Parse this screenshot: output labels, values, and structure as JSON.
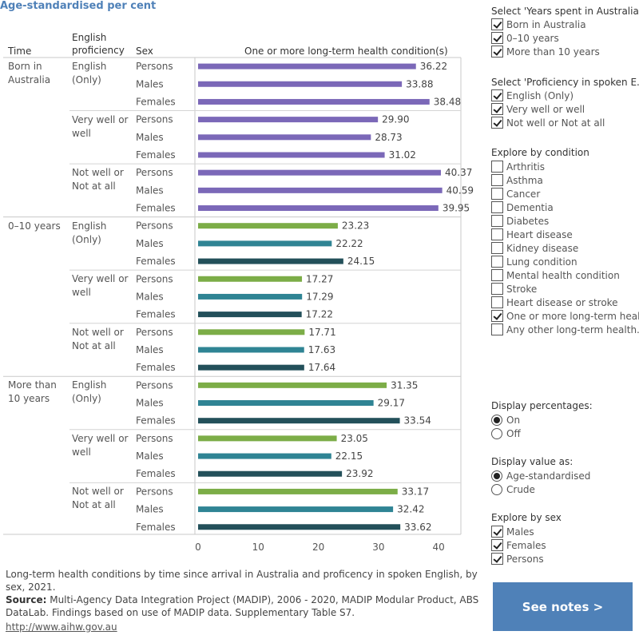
{
  "header": {
    "title": "Age-standardised per cent",
    "col_time": "Time",
    "col_english_line1": "English",
    "col_english_line2": "proficiency",
    "col_sex": "Sex",
    "col_measure": "One or more long-term health condition(s)"
  },
  "colors": {
    "born_in_australia": "#7b68b8",
    "persons": "#7cad47",
    "males": "#2f8494",
    "females": "#23505a",
    "accent": "#4f81b8"
  },
  "chart_data": {
    "type": "bar",
    "orientation": "horizontal",
    "xlim": [
      0,
      45
    ],
    "ticks": [
      0,
      10,
      20,
      30,
      40
    ],
    "xlabel": "One or more long-term health condition(s)",
    "groups": [
      {
        "time": "Born in Australia",
        "time_lines": [
          "Born in",
          "Australia"
        ],
        "subgroups": [
          {
            "english": "English (Only)",
            "english_lines": [
              "English",
              "(Only)"
            ],
            "rows": [
              {
                "sex": "Persons",
                "value": 36.22
              },
              {
                "sex": "Males",
                "value": 33.88
              },
              {
                "sex": "Females",
                "value": 38.48
              }
            ]
          },
          {
            "english": "Very well or well",
            "english_lines": [
              "Very well or",
              "well"
            ],
            "rows": [
              {
                "sex": "Persons",
                "value": 29.9
              },
              {
                "sex": "Males",
                "value": 28.73
              },
              {
                "sex": "Females",
                "value": 31.02
              }
            ]
          },
          {
            "english": "Not well or Not at all",
            "english_lines": [
              "Not well or",
              "Not at all"
            ],
            "rows": [
              {
                "sex": "Persons",
                "value": 40.37
              },
              {
                "sex": "Males",
                "value": 40.59
              },
              {
                "sex": "Females",
                "value": 39.95
              }
            ]
          }
        ]
      },
      {
        "time": "0–10 years",
        "time_lines": [
          "0–10 years"
        ],
        "subgroups": [
          {
            "english": "English (Only)",
            "english_lines": [
              "English",
              "(Only)"
            ],
            "rows": [
              {
                "sex": "Persons",
                "value": 23.23
              },
              {
                "sex": "Males",
                "value": 22.22
              },
              {
                "sex": "Females",
                "value": 24.15
              }
            ]
          },
          {
            "english": "Very well or well",
            "english_lines": [
              "Very well or",
              "well"
            ],
            "rows": [
              {
                "sex": "Persons",
                "value": 17.27
              },
              {
                "sex": "Males",
                "value": 17.29
              },
              {
                "sex": "Females",
                "value": 17.22
              }
            ]
          },
          {
            "english": "Not well or Not at all",
            "english_lines": [
              "Not well or",
              "Not at all"
            ],
            "rows": [
              {
                "sex": "Persons",
                "value": 17.71
              },
              {
                "sex": "Males",
                "value": 17.63
              },
              {
                "sex": "Females",
                "value": 17.64
              }
            ]
          }
        ]
      },
      {
        "time": "More than 10 years",
        "time_lines": [
          "More than",
          "10 years"
        ],
        "subgroups": [
          {
            "english": "English (Only)",
            "english_lines": [
              "English",
              "(Only)"
            ],
            "rows": [
              {
                "sex": "Persons",
                "value": 31.35
              },
              {
                "sex": "Males",
                "value": 29.17
              },
              {
                "sex": "Females",
                "value": 33.54
              }
            ]
          },
          {
            "english": "Very well or well",
            "english_lines": [
              "Very well or",
              "well"
            ],
            "rows": [
              {
                "sex": "Persons",
                "value": 23.05
              },
              {
                "sex": "Males",
                "value": 22.15
              },
              {
                "sex": "Females",
                "value": 23.92
              }
            ]
          },
          {
            "english": "Not well or Not at all",
            "english_lines": [
              "Not well or",
              "Not at all"
            ],
            "rows": [
              {
                "sex": "Persons",
                "value": 33.17
              },
              {
                "sex": "Males",
                "value": 32.42
              },
              {
                "sex": "Females",
                "value": 33.62
              }
            ]
          }
        ]
      }
    ]
  },
  "filters": {
    "years": {
      "title": "Select 'Years spent in Australia'",
      "options": [
        {
          "label": "Born in Australia",
          "checked": true
        },
        {
          "label": "0–10 years",
          "checked": true
        },
        {
          "label": "More than 10 years",
          "checked": true
        }
      ]
    },
    "proficiency": {
      "title": "Select 'Proficiency in spoken E..",
      "options": [
        {
          "label": "English (Only)",
          "checked": true
        },
        {
          "label": "Very well or well",
          "checked": true
        },
        {
          "label": "Not well or Not at all",
          "checked": true
        }
      ]
    },
    "condition": {
      "title": "Explore by condition",
      "options": [
        {
          "label": "Arthritis",
          "checked": false
        },
        {
          "label": "Asthma",
          "checked": false
        },
        {
          "label": "Cancer",
          "checked": false
        },
        {
          "label": "Dementia",
          "checked": false
        },
        {
          "label": "Diabetes",
          "checked": false
        },
        {
          "label": "Heart disease",
          "checked": false
        },
        {
          "label": "Kidney disease",
          "checked": false
        },
        {
          "label": "Lung condition",
          "checked": false
        },
        {
          "label": "Mental health condition",
          "checked": false
        },
        {
          "label": "Stroke",
          "checked": false
        },
        {
          "label": "Heart disease or stroke",
          "checked": false
        },
        {
          "label": "One or more long-term heal..",
          "checked": true
        },
        {
          "label": "Any other long-term health..",
          "checked": false
        }
      ]
    },
    "display_percentages": {
      "title": "Display percentages:",
      "options": [
        {
          "label": "On",
          "checked": true
        },
        {
          "label": "Off",
          "checked": false
        }
      ]
    },
    "display_value": {
      "title": "Display value as:",
      "options": [
        {
          "label": "Age-standardised",
          "checked": true
        },
        {
          "label": "Crude",
          "checked": false
        }
      ]
    },
    "sex": {
      "title": "Explore by sex",
      "options": [
        {
          "label": "Males",
          "checked": true
        },
        {
          "label": "Females",
          "checked": true
        },
        {
          "label": "Persons",
          "checked": true
        }
      ]
    }
  },
  "footer": {
    "caption": "Long-term health conditions by time since arrival in Australia and proficency in spoken English, by sex, 2021.",
    "source_label": "Source:",
    "source_text": " Multi-Agency Data Integration Project (MADIP), 2006 - 2020, MADIP Modular Product, ABS DataLab. Findings based on use of MADIP data. Supplementary Table S7.",
    "url": "http://www.aihw.gov.au",
    "see_notes": "See notes >"
  }
}
